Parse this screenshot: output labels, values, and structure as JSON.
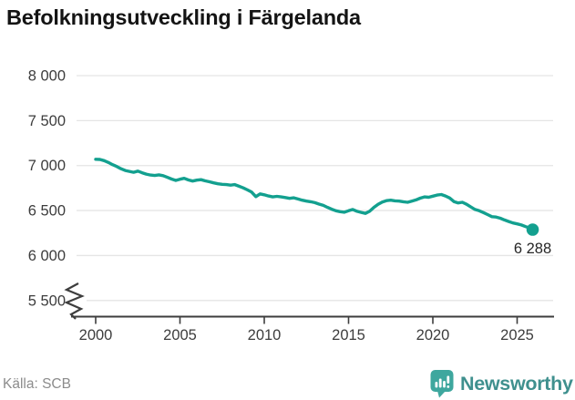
{
  "header": {
    "title": "Befolkningsutveckling i Färgelanda"
  },
  "footer": {
    "source_label": "Källa: SCB",
    "brand": "Newsworthy"
  },
  "colors": {
    "line": "#13a08f",
    "end_dot": "#13a08f",
    "grid": "#e5e5e5",
    "axis": "#3d3d3d",
    "tick_label": "#3d3d3d",
    "title": "#141414",
    "end_label": "#262626",
    "source_text": "#8c8c8c",
    "brand_icon": "#3ea79e",
    "brand_text": "#3f908e",
    "background": "#ffffff"
  },
  "chart_data": {
    "type": "line",
    "title": "Befolkningsutveckling i Färgelanda",
    "source": "Källa: SCB",
    "grid": "horizontal-only",
    "legend": "none",
    "x_axis": {
      "ticks": [
        {
          "value": 2000,
          "label": "2000"
        },
        {
          "value": 2005,
          "label": "2005"
        },
        {
          "value": 2010,
          "label": "2010"
        },
        {
          "value": 2015,
          "label": "2015"
        },
        {
          "value": 2020,
          "label": "2020"
        },
        {
          "value": 2025,
          "label": "2025"
        }
      ],
      "range": [
        1998.5,
        2027.2
      ]
    },
    "y_axis": {
      "ticks": [
        {
          "value": 8000,
          "label": "8 000"
        },
        {
          "value": 7500,
          "label": "7 500"
        },
        {
          "value": 7000,
          "label": "7 000"
        },
        {
          "value": 6500,
          "label": "6 500"
        },
        {
          "value": 6000,
          "label": "6 000"
        },
        {
          "value": 5500,
          "label": "5 500"
        }
      ],
      "range": [
        5500,
        8000
      ],
      "axis_break": true
    },
    "end_label": "6 288",
    "last_value": 6288,
    "series": [
      {
        "color": "#13a08f",
        "points": [
          [
            2000.0,
            7070
          ],
          [
            2000.25,
            7068
          ],
          [
            2000.5,
            7055
          ],
          [
            2000.75,
            7035
          ],
          [
            2001.0,
            7010
          ],
          [
            2001.25,
            6990
          ],
          [
            2001.5,
            6965
          ],
          [
            2001.75,
            6945
          ],
          [
            2002.0,
            6935
          ],
          [
            2002.25,
            6925
          ],
          [
            2002.5,
            6938
          ],
          [
            2002.75,
            6920
          ],
          [
            2003.0,
            6905
          ],
          [
            2003.25,
            6895
          ],
          [
            2003.5,
            6890
          ],
          [
            2003.75,
            6897
          ],
          [
            2004.0,
            6888
          ],
          [
            2004.25,
            6870
          ],
          [
            2004.5,
            6850
          ],
          [
            2004.75,
            6835
          ],
          [
            2005.0,
            6848
          ],
          [
            2005.25,
            6858
          ],
          [
            2005.5,
            6840
          ],
          [
            2005.75,
            6828
          ],
          [
            2006.0,
            6838
          ],
          [
            2006.25,
            6843
          ],
          [
            2006.5,
            6830
          ],
          [
            2006.75,
            6820
          ],
          [
            2007.0,
            6808
          ],
          [
            2007.25,
            6798
          ],
          [
            2007.5,
            6792
          ],
          [
            2007.75,
            6788
          ],
          [
            2008.0,
            6782
          ],
          [
            2008.25,
            6788
          ],
          [
            2008.5,
            6770
          ],
          [
            2008.75,
            6752
          ],
          [
            2009.0,
            6730
          ],
          [
            2009.25,
            6705
          ],
          [
            2009.5,
            6655
          ],
          [
            2009.75,
            6685
          ],
          [
            2010.0,
            6675
          ],
          [
            2010.25,
            6662
          ],
          [
            2010.5,
            6652
          ],
          [
            2010.75,
            6658
          ],
          [
            2011.0,
            6652
          ],
          [
            2011.25,
            6645
          ],
          [
            2011.5,
            6636
          ],
          [
            2011.75,
            6642
          ],
          [
            2012.0,
            6628
          ],
          [
            2012.25,
            6615
          ],
          [
            2012.5,
            6605
          ],
          [
            2012.75,
            6598
          ],
          [
            2013.0,
            6588
          ],
          [
            2013.25,
            6572
          ],
          [
            2013.5,
            6558
          ],
          [
            2013.75,
            6535
          ],
          [
            2014.0,
            6515
          ],
          [
            2014.25,
            6498
          ],
          [
            2014.5,
            6488
          ],
          [
            2014.75,
            6482
          ],
          [
            2015.0,
            6498
          ],
          [
            2015.25,
            6512
          ],
          [
            2015.5,
            6492
          ],
          [
            2015.75,
            6480
          ],
          [
            2016.0,
            6468
          ],
          [
            2016.25,
            6492
          ],
          [
            2016.5,
            6535
          ],
          [
            2016.75,
            6570
          ],
          [
            2017.0,
            6595
          ],
          [
            2017.25,
            6610
          ],
          [
            2017.5,
            6615
          ],
          [
            2017.75,
            6608
          ],
          [
            2018.0,
            6605
          ],
          [
            2018.25,
            6598
          ],
          [
            2018.5,
            6592
          ],
          [
            2018.75,
            6605
          ],
          [
            2019.0,
            6618
          ],
          [
            2019.25,
            6638
          ],
          [
            2019.5,
            6652
          ],
          [
            2019.75,
            6648
          ],
          [
            2020.0,
            6660
          ],
          [
            2020.25,
            6672
          ],
          [
            2020.5,
            6678
          ],
          [
            2020.75,
            6662
          ],
          [
            2021.0,
            6640
          ],
          [
            2021.25,
            6600
          ],
          [
            2021.5,
            6585
          ],
          [
            2021.75,
            6592
          ],
          [
            2022.0,
            6570
          ],
          [
            2022.25,
            6540
          ],
          [
            2022.5,
            6512
          ],
          [
            2022.75,
            6498
          ],
          [
            2023.0,
            6478
          ],
          [
            2023.25,
            6455
          ],
          [
            2023.5,
            6432
          ],
          [
            2023.75,
            6428
          ],
          [
            2024.0,
            6415
          ],
          [
            2024.25,
            6395
          ],
          [
            2024.5,
            6378
          ],
          [
            2024.75,
            6362
          ],
          [
            2025.0,
            6352
          ],
          [
            2025.25,
            6340
          ],
          [
            2025.5,
            6322
          ],
          [
            2025.75,
            6305
          ],
          [
            2025.92,
            6288
          ]
        ]
      }
    ]
  }
}
